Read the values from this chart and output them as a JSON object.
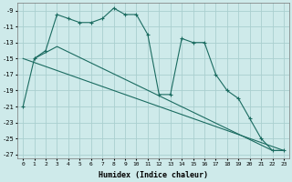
{
  "xlabel": "Humidex (Indice chaleur)",
  "bg_color": "#ceeaea",
  "grid_color": "#aacfcf",
  "line_color": "#1a6b60",
  "ylim": [
    -27.5,
    -8.0
  ],
  "xlim": [
    -0.5,
    23.5
  ],
  "yticks": [
    -9,
    -11,
    -13,
    -15,
    -17,
    -19,
    -21,
    -23,
    -25,
    -27
  ],
  "xticks": [
    0,
    1,
    2,
    3,
    4,
    5,
    6,
    7,
    8,
    9,
    10,
    11,
    12,
    13,
    14,
    15,
    16,
    17,
    18,
    19,
    20,
    21,
    22,
    23
  ],
  "line1_x": [
    0,
    1,
    2,
    3,
    4,
    5,
    6,
    7,
    8,
    9,
    10,
    11,
    12,
    13,
    14,
    15,
    16,
    17,
    18,
    19,
    20,
    21,
    22,
    23
  ],
  "line1_y": [
    -21,
    -15,
    -14,
    -9.5,
    -10,
    -10.5,
    -10.5,
    -10,
    -8.7,
    -9.5,
    -9.5,
    -12,
    -19.5,
    -19.5,
    -12.5,
    -13,
    -13,
    -17,
    -19,
    -20,
    -22.5,
    -25,
    -26.5,
    -26.5
  ],
  "line2_x": [
    1,
    3,
    22,
    23
  ],
  "line2_y": [
    -15,
    -13.5,
    -26.5,
    -26.5
  ],
  "line3_x": [
    0,
    23
  ],
  "line3_y": [
    -15,
    -26.5
  ]
}
